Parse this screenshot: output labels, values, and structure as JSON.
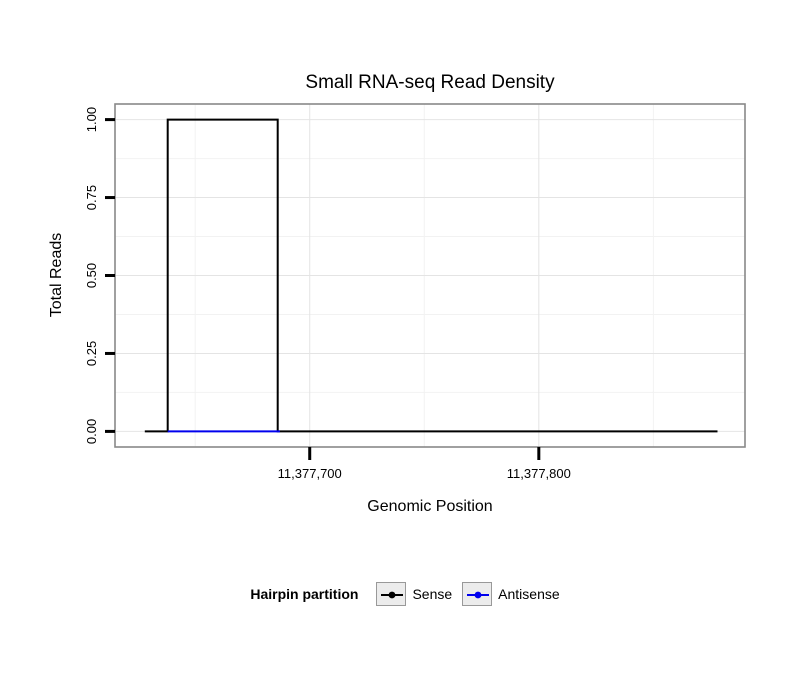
{
  "chart_data": {
    "type": "line",
    "title": "Small RNA-seq Read Density",
    "xlabel": "Genomic Position",
    "ylabel": "Total Reads",
    "xlim": [
      11377615,
      11377890
    ],
    "ylim": [
      -0.05,
      1.05
    ],
    "x_ticks": [
      {
        "value": 11377700,
        "label": "11,377,700"
      },
      {
        "value": 11377800,
        "label": "11,377,800"
      }
    ],
    "y_ticks": [
      {
        "value": 0.0,
        "label": "0.00"
      },
      {
        "value": 0.25,
        "label": "0.25"
      },
      {
        "value": 0.5,
        "label": "0.50"
      },
      {
        "value": 0.75,
        "label": "0.75"
      },
      {
        "value": 1.0,
        "label": "1.00"
      }
    ],
    "grid": {
      "x_minor": [
        11377650,
        11377750,
        11377850
      ],
      "y_minor": [
        0.125,
        0.375,
        0.625,
        0.875
      ]
    },
    "series": [
      {
        "name": "Sense",
        "color": "#000000",
        "points": [
          [
            11377628,
            0
          ],
          [
            11377638,
            0
          ],
          [
            11377638,
            1
          ],
          [
            11377686,
            1
          ],
          [
            11377686,
            0
          ],
          [
            11377878,
            0
          ]
        ]
      },
      {
        "name": "Antisense",
        "color": "#0000EE",
        "points": [
          [
            11377638,
            0
          ],
          [
            11377687,
            0
          ]
        ]
      }
    ],
    "legend": {
      "title": "Hairpin partition",
      "entries": [
        {
          "label": "Sense",
          "color": "#000000"
        },
        {
          "label": "Antisense",
          "color": "#0000EE"
        }
      ]
    },
    "colors": {
      "grid_major": "#e4e4e4",
      "grid_minor": "#f2f2f2",
      "panel_border": "#898989",
      "axis_tick": "#000000"
    }
  }
}
